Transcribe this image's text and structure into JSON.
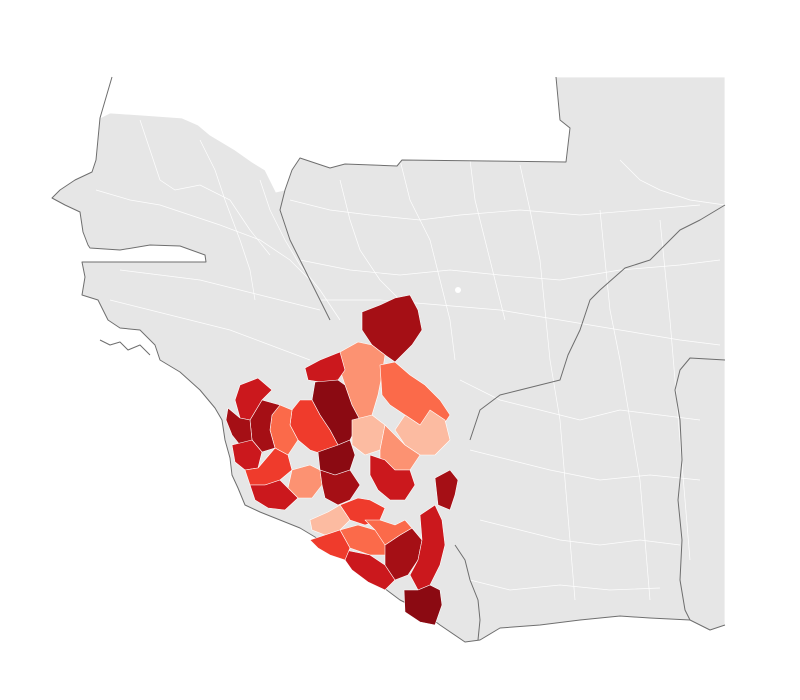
{
  "map": {
    "type": "choropleth",
    "base_color": "#e6e6e6",
    "border_color": "#ffffff",
    "coast_color": "#6e6e6e",
    "palette": [
      "#fcbba1",
      "#fc9272",
      "#fb6a4a",
      "#ef3b2c",
      "#cb181d",
      "#a50f15",
      "#8b0a12"
    ]
  },
  "chart_data": {
    "type": "choropleth",
    "scale_levels": 7,
    "regions": [
      {
        "id": "r01",
        "level": 5
      },
      {
        "id": "r02",
        "level": 1
      },
      {
        "id": "r03",
        "level": 4
      },
      {
        "id": "r04",
        "level": 6
      },
      {
        "id": "r05",
        "level": 0
      },
      {
        "id": "r06",
        "level": 2
      },
      {
        "id": "r07",
        "level": 0
      },
      {
        "id": "r08",
        "level": 1
      },
      {
        "id": "r09",
        "level": 5
      },
      {
        "id": "r10",
        "level": 4
      },
      {
        "id": "r11",
        "level": 3
      },
      {
        "id": "r12",
        "level": 6
      },
      {
        "id": "r13",
        "level": 2
      },
      {
        "id": "r14",
        "level": 5
      },
      {
        "id": "r15",
        "level": 4
      },
      {
        "id": "r16",
        "level": 5
      },
      {
        "id": "r17",
        "level": 4
      },
      {
        "id": "r18",
        "level": 3
      },
      {
        "id": "r19",
        "level": 1
      },
      {
        "id": "r20",
        "level": 4
      },
      {
        "id": "r21",
        "level": 5
      },
      {
        "id": "r22",
        "level": 3
      },
      {
        "id": "r23",
        "level": 2
      },
      {
        "id": "r24",
        "level": 0
      },
      {
        "id": "r25",
        "level": 4
      },
      {
        "id": "r26",
        "level": 3
      },
      {
        "id": "r27",
        "level": 5
      },
      {
        "id": "r28",
        "level": 4
      },
      {
        "id": "r29",
        "level": 6
      },
      {
        "id": "r30",
        "level": 2
      }
    ]
  }
}
